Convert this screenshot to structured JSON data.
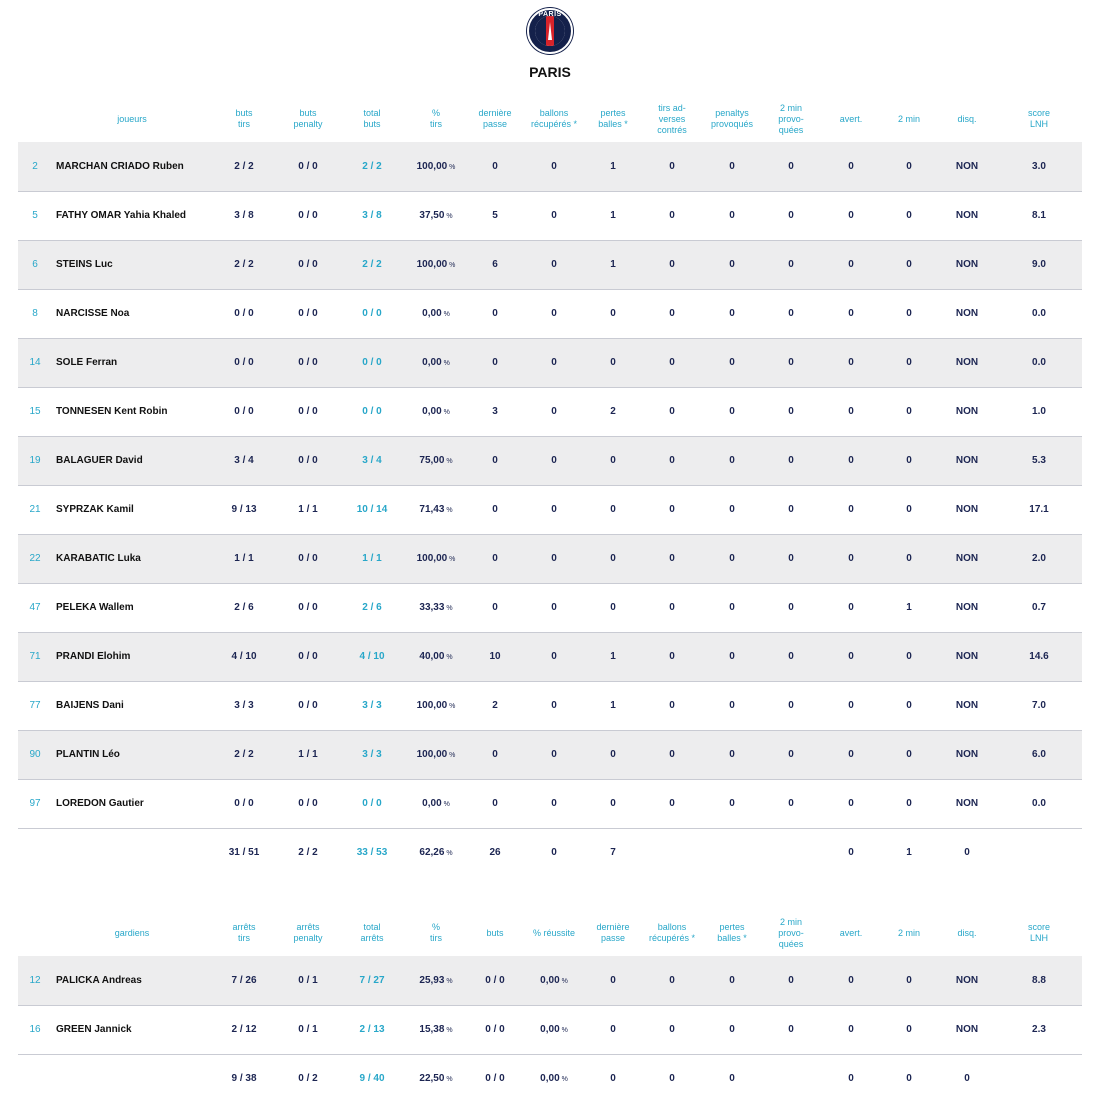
{
  "team": {
    "name": "PARIS",
    "crest_text": "PARIS"
  },
  "players": {
    "headers": [
      "",
      "joueurs",
      "buts\ntirs",
      "buts\npenalty",
      "total\nbuts",
      "%\ntirs",
      "dernière\npasse",
      "ballons\nrécupérés *",
      "pertes\nballes *",
      "tirs ad-\nverses\ncontrés",
      "penaltys\nprovoqués",
      "2 min\nprovo-\nquées",
      "avert.",
      "2 min",
      "disq.",
      "score\nLNH"
    ],
    "rows": [
      [
        "2",
        "MARCHAN CRIADO Ruben",
        "2 / 2",
        "0 / 0",
        "2 / 2",
        "100,00",
        "0",
        "0",
        "1",
        "0",
        "0",
        "0",
        "0",
        "0",
        "NON",
        "3.0"
      ],
      [
        "5",
        "FATHY OMAR Yahia Khaled",
        "3 / 8",
        "0 / 0",
        "3 / 8",
        "37,50",
        "5",
        "0",
        "1",
        "0",
        "0",
        "0",
        "0",
        "0",
        "NON",
        "8.1"
      ],
      [
        "6",
        "STEINS Luc",
        "2 / 2",
        "0 / 0",
        "2 / 2",
        "100,00",
        "6",
        "0",
        "1",
        "0",
        "0",
        "0",
        "0",
        "0",
        "NON",
        "9.0"
      ],
      [
        "8",
        "NARCISSE Noa",
        "0 / 0",
        "0 / 0",
        "0 / 0",
        "0,00",
        "0",
        "0",
        "0",
        "0",
        "0",
        "0",
        "0",
        "0",
        "NON",
        "0.0"
      ],
      [
        "14",
        "SOLE Ferran",
        "0 / 0",
        "0 / 0",
        "0 / 0",
        "0,00",
        "0",
        "0",
        "0",
        "0",
        "0",
        "0",
        "0",
        "0",
        "NON",
        "0.0"
      ],
      [
        "15",
        "TONNESEN Kent Robin",
        "0 / 0",
        "0 / 0",
        "0 / 0",
        "0,00",
        "3",
        "0",
        "2",
        "0",
        "0",
        "0",
        "0",
        "0",
        "NON",
        "1.0"
      ],
      [
        "19",
        "BALAGUER David",
        "3 / 4",
        "0 / 0",
        "3 / 4",
        "75,00",
        "0",
        "0",
        "0",
        "0",
        "0",
        "0",
        "0",
        "0",
        "NON",
        "5.3"
      ],
      [
        "21",
        "SYPRZAK Kamil",
        "9 / 13",
        "1 / 1",
        "10 / 14",
        "71,43",
        "0",
        "0",
        "0",
        "0",
        "0",
        "0",
        "0",
        "0",
        "NON",
        "17.1"
      ],
      [
        "22",
        "KARABATIC Luka",
        "1 / 1",
        "0 / 0",
        "1 / 1",
        "100,00",
        "0",
        "0",
        "0",
        "0",
        "0",
        "0",
        "0",
        "0",
        "NON",
        "2.0"
      ],
      [
        "47",
        "PELEKA Wallem",
        "2 / 6",
        "0 / 0",
        "2 / 6",
        "33,33",
        "0",
        "0",
        "0",
        "0",
        "0",
        "0",
        "0",
        "1",
        "NON",
        "0.7"
      ],
      [
        "71",
        "PRANDI Elohim",
        "4 / 10",
        "0 / 0",
        "4 / 10",
        "40,00",
        "10",
        "0",
        "1",
        "0",
        "0",
        "0",
        "0",
        "0",
        "NON",
        "14.6"
      ],
      [
        "77",
        "BAIJENS Dani",
        "3 / 3",
        "0 / 0",
        "3 / 3",
        "100,00",
        "2",
        "0",
        "1",
        "0",
        "0",
        "0",
        "0",
        "0",
        "NON",
        "7.0"
      ],
      [
        "90",
        "PLANTIN Léo",
        "2 / 2",
        "1 / 1",
        "3 / 3",
        "100,00",
        "0",
        "0",
        "0",
        "0",
        "0",
        "0",
        "0",
        "0",
        "NON",
        "6.0"
      ],
      [
        "97",
        "LOREDON Gautier",
        "0 / 0",
        "0 / 0",
        "0 / 0",
        "0,00",
        "0",
        "0",
        "0",
        "0",
        "0",
        "0",
        "0",
        "0",
        "NON",
        "0.0"
      ]
    ],
    "total": [
      "",
      "",
      "31 / 51",
      "2 / 2",
      "33 / 53",
      "62,26",
      "26",
      "0",
      "7",
      "",
      "",
      "",
      "0",
      "1",
      "0",
      ""
    ]
  },
  "goalies": {
    "headers": [
      "",
      "gardiens",
      "arrêts\ntirs",
      "arrêts\npenalty",
      "total\narrêts",
      "%\ntirs",
      "buts",
      "% réussite",
      "dernière\npasse",
      "ballons\nrécupérés *",
      "pertes\nballes *",
      "2 min\nprovo-\nquées",
      "avert.",
      "2 min",
      "disq.",
      "score\nLNH"
    ],
    "rows": [
      [
        "12",
        "PALICKA Andreas",
        "7 / 26",
        "0 / 1",
        "7 / 27",
        "25,93",
        "0 / 0",
        "0,00",
        "0",
        "0",
        "0",
        "0",
        "0",
        "0",
        "NON",
        "8.8"
      ],
      [
        "16",
        "GREEN Jannick",
        "2 / 12",
        "0 / 1",
        "2 / 13",
        "15,38",
        "0 / 0",
        "0,00",
        "0",
        "0",
        "0",
        "0",
        "0",
        "0",
        "NON",
        "2.3"
      ]
    ],
    "total": [
      "",
      "",
      "9 / 38",
      "0 / 2",
      "9 / 40",
      "22,50",
      "0 / 0",
      "0,00",
      "0",
      "0",
      "0",
      "",
      "0",
      "0",
      "0",
      ""
    ]
  },
  "percent_sign": "%"
}
